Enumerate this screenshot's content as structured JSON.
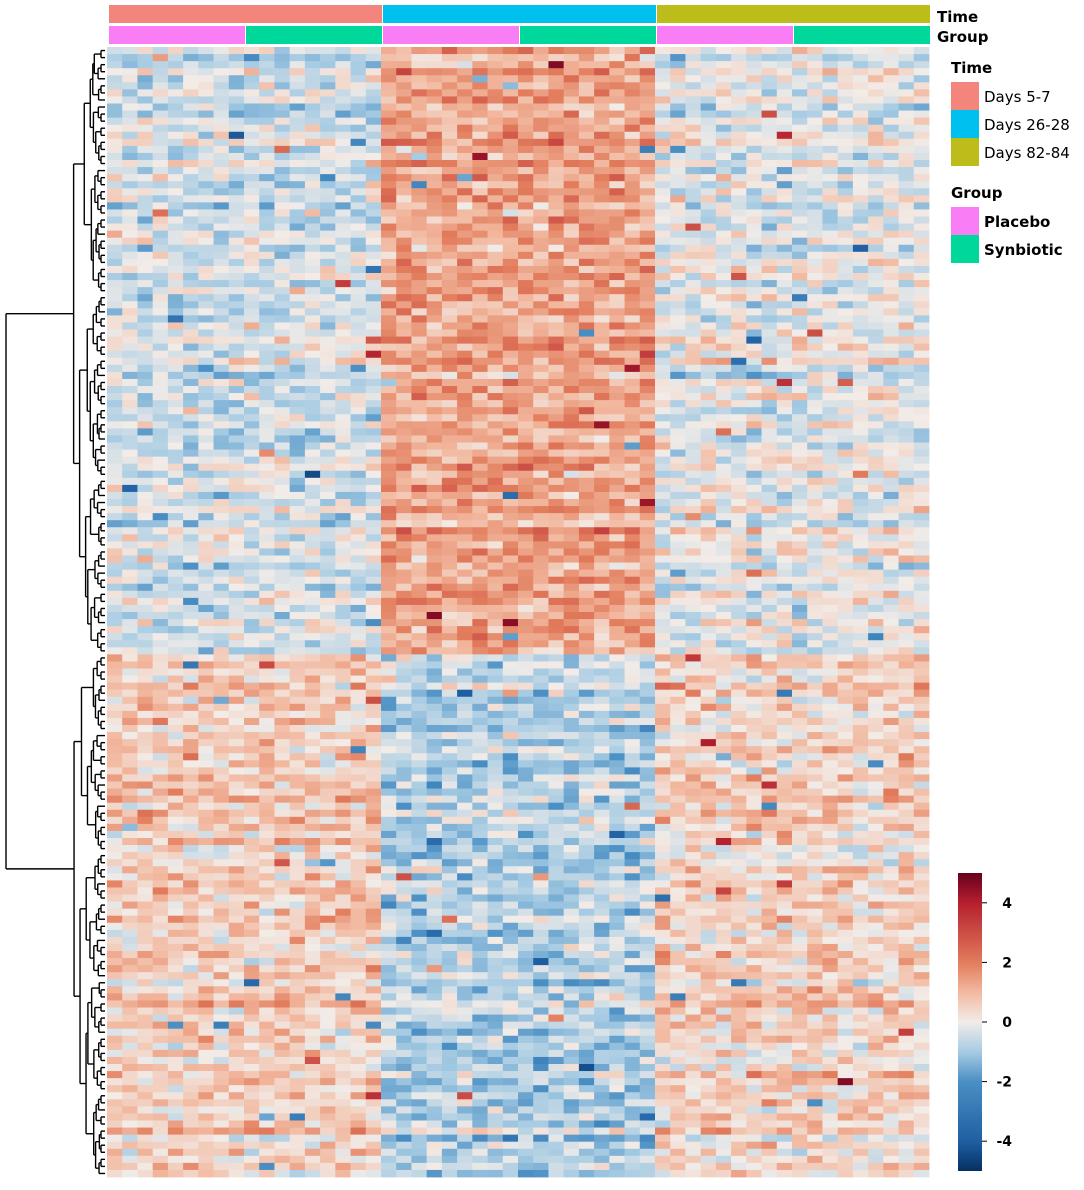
{
  "chart_data": {
    "type": "heatmap",
    "title": "",
    "columns": {
      "count": 54,
      "time_values": [
        "Days 5-7",
        "Days 26-28",
        "Days 82-84"
      ],
      "columns_per_time": 18,
      "group_values": [
        "Placebo",
        "Synbiotic"
      ],
      "columns_per_group_block": 9
    },
    "rows": {
      "count": 160,
      "clusters": [
        {
          "name": "upper",
          "row_range": [
            0,
            85
          ],
          "mean_by_block": {
            "Days 5-7": -0.4,
            "Days 26-28": 1.3,
            "Days 82-84": -0.2
          }
        },
        {
          "name": "lower",
          "row_range": [
            86,
            159
          ],
          "mean_by_block": {
            "Days 5-7": 0.6,
            "Days 26-28": -0.8,
            "Days 82-84": 0.5
          }
        }
      ]
    },
    "color_scale": {
      "min": -5,
      "max": 5,
      "ticks": [
        4,
        2,
        0,
        -2,
        -4
      ],
      "stops": [
        {
          "value": -5,
          "color": "#053061"
        },
        {
          "value": -4,
          "color": "#1f5fa3"
        },
        {
          "value": -2,
          "color": "#4a8fc4"
        },
        {
          "value": -1,
          "color": "#a6cbe3"
        },
        {
          "value": 0,
          "color": "#f2ece8"
        },
        {
          "value": 1,
          "color": "#f2b9a0"
        },
        {
          "value": 2,
          "color": "#e27c5c"
        },
        {
          "value": 4,
          "color": "#b51f2e"
        },
        {
          "value": 5,
          "color": "#67001f"
        }
      ]
    },
    "annotation_tracks": [
      {
        "label": "Time",
        "values": [
          "Days 5-7",
          "Days 26-28",
          "Days 82-84"
        ],
        "colors": {
          "Days 5-7": "#f4857d",
          "Days 26-28": "#00c0f0",
          "Days 82-84": "#bcbc1a"
        }
      },
      {
        "label": "Group",
        "values": [
          "Placebo",
          "Synbiotic"
        ],
        "colors": {
          "Placebo": "#f97ef5",
          "Synbiotic": "#00d79a"
        }
      }
    ],
    "legend": {
      "placement": "right",
      "time_title": "Time",
      "time_items": [
        "Days 5-7",
        "Days 26-28",
        "Days 82-84"
      ],
      "group_title": "Group",
      "group_items": [
        "Placebo",
        "Synbiotic"
      ]
    },
    "dendrogram": {
      "side": "left",
      "splits": 2
    }
  }
}
